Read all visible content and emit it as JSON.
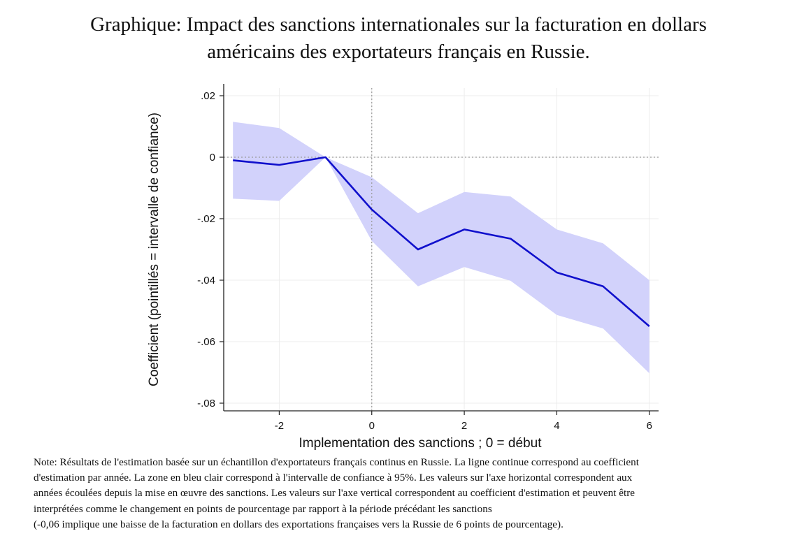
{
  "title_lines": [
    "Graphique: Impact des sanctions internationales sur la facturation en dollars",
    "américains des exportateurs français en Russie."
  ],
  "note_lines": [
    "Note: Résultats de l'estimation basée sur un échantillon d'exportateurs français continus en Russie. La ligne continue correspond au coefficient",
    "d'estimation par année. La zone en bleu clair correspond à l'intervalle de confiance à 95%. Les valeurs sur l'axe horizontal correspondent aux",
    "années écoulées depuis la mise en œuvre des sanctions. Les valeurs sur l'axe vertical correspondent au coefficient d'estimation et peuvent être",
    "interprétées comme le changement en points de pourcentage par rapport à la période précédant les sanctions",
    "(-0,06 implique une baisse de la facturation en dollars des exportations françaises vers la Russie de 6 points de pourcentage)."
  ],
  "chart_data": {
    "type": "line",
    "xlabel": "Implementation des sanctions ; 0 = début",
    "ylabel": "Coefficient (pointillés = intervalle de confiance)",
    "xlim": [
      -3.2,
      6.2
    ],
    "ylim": [
      -0.0825,
      0.0225
    ],
    "x_ticks": [
      -2,
      0,
      2,
      4,
      6
    ],
    "x_tick_labels": [
      "-2",
      "0",
      "2",
      "4",
      "6"
    ],
    "y_ticks": [
      0.02,
      0,
      -0.02,
      -0.04,
      -0.06,
      -0.08
    ],
    "y_tick_labels": [
      ".02",
      "0",
      "-.02",
      "-.04",
      "-.06",
      "-.08"
    ],
    "reference_lines": {
      "x": 0,
      "y": 0
    },
    "grid": true,
    "x": [
      -3,
      -2,
      -1,
      0,
      1,
      2,
      3,
      4,
      5,
      6
    ],
    "series": [
      {
        "values": [
          -0.001,
          -0.0025,
          0,
          -0.017,
          -0.03,
          -0.0235,
          -0.0265,
          -0.0375,
          -0.042,
          -0.055
        ],
        "lower": [
          -0.0135,
          -0.0142,
          0,
          -0.0272,
          -0.042,
          -0.0357,
          -0.0402,
          -0.0513,
          -0.0557,
          -0.0703
        ],
        "upper": [
          0.0115,
          0.0095,
          0,
          -0.0065,
          -0.0182,
          -0.0113,
          -0.0128,
          -0.0235,
          -0.028,
          -0.04
        ]
      }
    ],
    "colors": {
      "line": "#1010cc",
      "band": "#d2d2fb",
      "reference": "#9a9a9a",
      "grid": "#ececec"
    }
  }
}
